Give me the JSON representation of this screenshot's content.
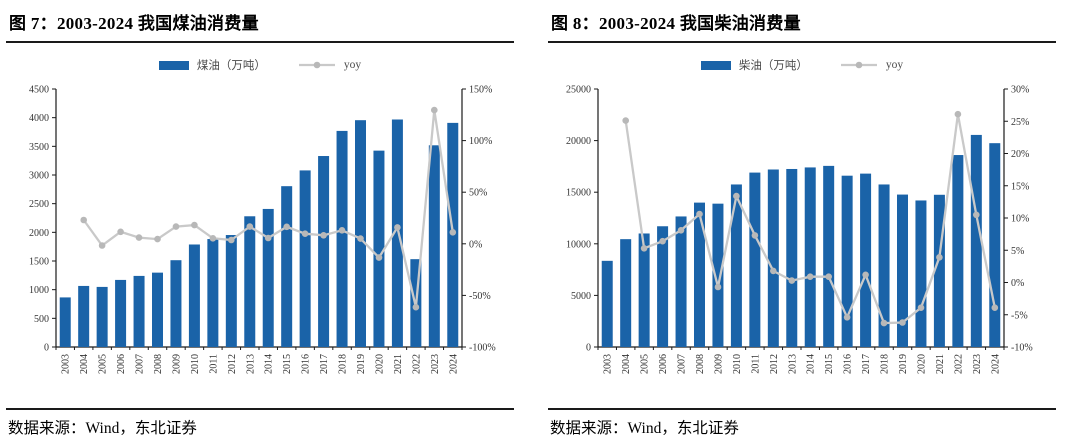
{
  "colors": {
    "bar": "#1A63A8",
    "line": "#C9C9C9",
    "marker": "#B8B8B8",
    "axis": "#1A1A1A",
    "tick_text": "#333333"
  },
  "panels": [
    {
      "source_note": "数据来源：Wind，东北证券"
    },
    {
      "source_note": "数据来源：Wind，东北证券"
    }
  ],
  "chart_data": [
    {
      "type": "bar+line",
      "title": "图 7：2003-2024 我国煤油消费量",
      "categories": [
        "2003",
        "2004",
        "2005",
        "2006",
        "2007",
        "2008",
        "2009",
        "2010",
        "2011",
        "2012",
        "2013",
        "2014",
        "2015",
        "2016",
        "2017",
        "2018",
        "2019",
        "2020",
        "2021",
        "2022",
        "2023",
        "2024"
      ],
      "series": [
        {
          "name": "煤油（万吨）",
          "type": "bar",
          "axis": "left",
          "unit": "万吨",
          "values": [
            865,
            1065,
            1048,
            1170,
            1240,
            1297,
            1514,
            1788,
            1883,
            1953,
            2280,
            2408,
            2805,
            3080,
            3331,
            3769,
            3956,
            3425,
            3968,
            1532,
            3518,
            3909
          ]
        },
        {
          "name": "yoy",
          "type": "line",
          "axis": "right",
          "unit": "%",
          "values": [
            null,
            23.1,
            -1.6,
            11.6,
            6.0,
            4.6,
            16.7,
            18.1,
            5.3,
            3.7,
            16.7,
            5.6,
            16.5,
            9.8,
            8.2,
            13.1,
            5.0,
            -13.4,
            15.9,
            -61.4,
            129.6,
            11.1
          ]
        }
      ],
      "left_axis": {
        "min": 0,
        "max": 4500,
        "ticks": [
          "0",
          "500",
          "1000",
          "1500",
          "2000",
          "2500",
          "3000",
          "3500",
          "4000",
          "4500"
        ]
      },
      "right_axis": {
        "min": -100,
        "max": 150,
        "ticks": [
          "-100%",
          "-50%",
          "0%",
          "50%",
          "100%",
          "150%"
        ]
      },
      "legend_position": "top",
      "grid": false
    },
    {
      "type": "bar+line",
      "title": "图 8：2003-2024 我国柴油消费量",
      "categories": [
        "2003",
        "2004",
        "2005",
        "2006",
        "2007",
        "2008",
        "2009",
        "2010",
        "2011",
        "2012",
        "2013",
        "2014",
        "2015",
        "2016",
        "2017",
        "2018",
        "2019",
        "2020",
        "2021",
        "2022",
        "2023",
        "2024"
      ],
      "series": [
        {
          "name": "柴油（万吨）",
          "type": "bar",
          "axis": "left",
          "unit": "万吨",
          "values": [
            8350,
            10450,
            11000,
            11700,
            12650,
            13990,
            13890,
            15750,
            16900,
            17200,
            17250,
            17400,
            17550,
            16600,
            16800,
            15750,
            14770,
            14200,
            14750,
            18600,
            20550,
            19750
          ]
        },
        {
          "name": "yoy",
          "type": "line",
          "axis": "right",
          "unit": "%",
          "values": [
            null,
            25.1,
            5.3,
            6.4,
            8.1,
            10.6,
            -0.7,
            13.4,
            7.3,
            1.8,
            0.3,
            0.9,
            0.9,
            -5.4,
            1.2,
            -6.3,
            -6.2,
            -3.9,
            3.9,
            26.1,
            10.5,
            -3.9
          ]
        }
      ],
      "left_axis": {
        "min": 0,
        "max": 25000,
        "ticks": [
          "0",
          "5000",
          "10000",
          "15000",
          "20000",
          "25000"
        ]
      },
      "right_axis": {
        "min": -10,
        "max": 30,
        "ticks": [
          "-10%",
          "-5%",
          "0%",
          "5%",
          "10%",
          "15%",
          "20%",
          "25%",
          "30%"
        ]
      },
      "legend_position": "top",
      "grid": false
    }
  ]
}
